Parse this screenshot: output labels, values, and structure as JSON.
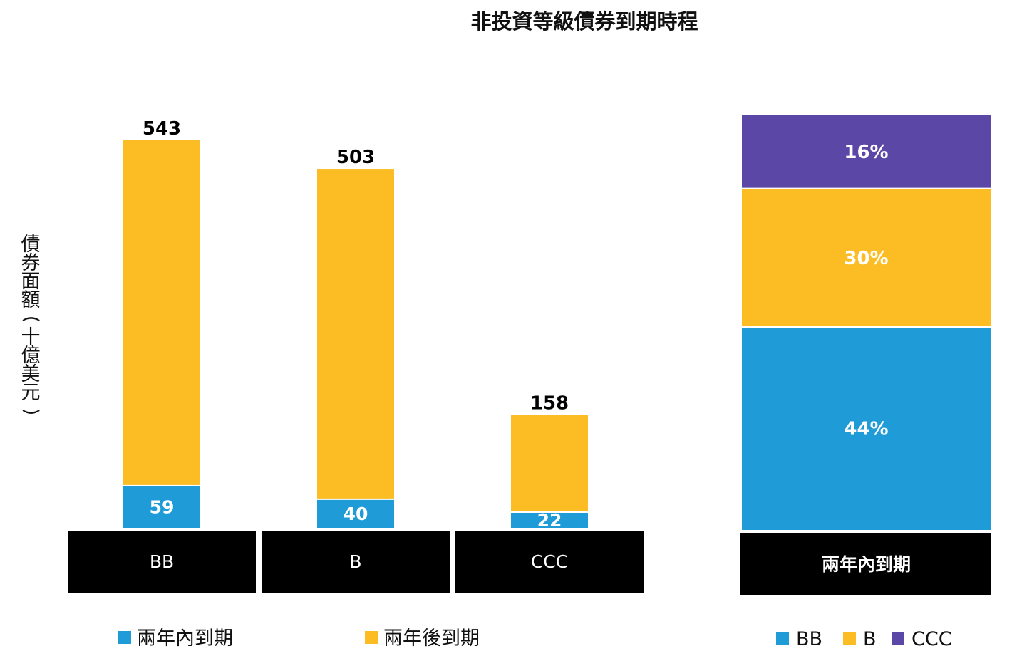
{
  "chart_data": [
    {
      "type": "bar",
      "stacked": true,
      "title": "非投資等級債券到期時程",
      "ylabel": "債券面額(十億美元)",
      "categories": [
        "BB",
        "B",
        "CCC"
      ],
      "totals": [
        543,
        503,
        158
      ],
      "series": [
        {
          "name": "兩年內到期",
          "color": "#1f9bd7",
          "values": [
            59,
            40,
            22
          ]
        },
        {
          "name": "兩年後到期",
          "color": "#fbbd23",
          "values": [
            484,
            463,
            136
          ]
        }
      ],
      "ylim": [
        0,
        543
      ],
      "grid": false,
      "legend_position": "bottom"
    },
    {
      "type": "bar",
      "stacked": true,
      "percent": true,
      "category": "兩年內到期",
      "series": [
        {
          "name": "BB",
          "color": "#1f9bd7",
          "value": 44,
          "label": "44%"
        },
        {
          "name": "B",
          "color": "#fbbd23",
          "value": 30,
          "label": "30%"
        },
        {
          "name": "CCC",
          "color": "#5b47a6",
          "value": 16,
          "label": "16%"
        }
      ],
      "legend_position": "bottom"
    }
  ]
}
